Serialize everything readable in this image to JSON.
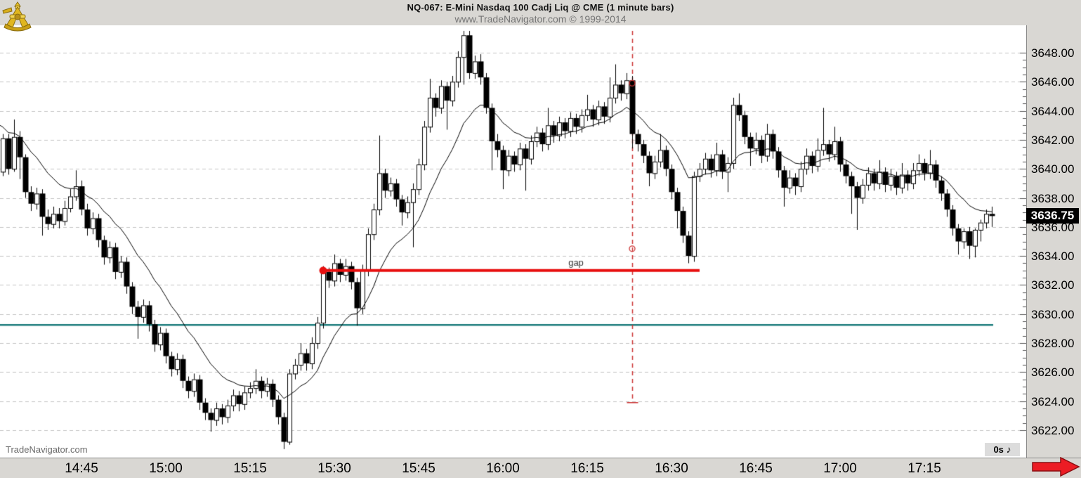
{
  "header": {
    "title": "NQ-067:  E-Mini Nasdaq 100 Cadj Liq @ CME  (1 minute bars)",
    "subtitle": "www.TradeNavigator.com © 1999-2014",
    "logo": "trade-navigator-sextant-logo"
  },
  "watermark": "TradeNavigator.com",
  "status_box": {
    "label": "0s",
    "icon": "eighth-note-icon",
    "note_glyph": "♪"
  },
  "price_axis": {
    "max": 3648,
    "min": 3622,
    "step": 2,
    "decimals": 2,
    "labels": [
      "3648.00",
      "3646.00",
      "3644.00",
      "3642.00",
      "3640.00",
      "3638.00",
      "3636.00",
      "3634.00",
      "3632.00",
      "3630.00",
      "3628.00",
      "3626.00",
      "3624.00",
      "3622.00"
    ],
    "last_price_badge": "3636.75"
  },
  "time_axis": {
    "labels": [
      "14:45",
      "15:00",
      "15:15",
      "15:30",
      "15:45",
      "16:00",
      "16:15",
      "16:30",
      "16:45",
      "17:00",
      "17:15"
    ]
  },
  "colors": {
    "panel_bg": "#d9d7d3",
    "grid": "#c3c3c3",
    "candle_up": "#ffffff",
    "candle_down": "#000000",
    "candle_outline": "#000000",
    "ma_line": "#000000",
    "support_teal": "#1c7c7c",
    "gap_red": "#e81010",
    "vline_red": "#cc3333",
    "arrow_red": "#ec1c24",
    "badge_bg": "#000000",
    "badge_fg": "#ffffff"
  },
  "chart_data": {
    "type": "candlestick",
    "title": "NQ-067: E-Mini Nasdaq 100 Cadj Liq @ CME (1 minute bars)",
    "interval_minutes": 1,
    "start_time": "14:31",
    "end_time": "17:27",
    "ylim": [
      3620.1,
      3649.7
    ],
    "grid": "dashed-horizontal",
    "last_price": 3636.75,
    "bars_ohlc": [
      [
        3639.8,
        3642.4,
        3639.5,
        3642.1
      ],
      [
        3642.1,
        3642.4,
        3639.6,
        3640.0
      ],
      [
        3640.0,
        3643.4,
        3639.8,
        3642.2
      ],
      [
        3642.2,
        3642.6,
        3639.3,
        3640.8
      ],
      [
        3640.8,
        3641.0,
        3638.0,
        3638.4
      ],
      [
        3638.4,
        3638.8,
        3637.1,
        3637.6
      ],
      [
        3637.6,
        3638.7,
        3637.2,
        3638.3
      ],
      [
        3638.3,
        3638.6,
        3635.4,
        3636.7
      ],
      [
        3636.7,
        3637.2,
        3635.8,
        3636.2
      ],
      [
        3636.2,
        3637.4,
        3635.9,
        3636.9
      ],
      [
        3636.9,
        3637.3,
        3635.9,
        3636.4
      ],
      [
        3636.4,
        3637.8,
        3636.1,
        3637.3
      ],
      [
        3637.3,
        3638.6,
        3637.0,
        3638.1
      ],
      [
        3638.1,
        3639.9,
        3637.8,
        3638.8
      ],
      [
        3638.8,
        3639.2,
        3636.8,
        3637.2
      ],
      [
        3637.2,
        3637.6,
        3635.4,
        3635.9
      ],
      [
        3635.9,
        3637.0,
        3635.5,
        3636.6
      ],
      [
        3636.6,
        3636.9,
        3634.6,
        3635.1
      ],
      [
        3635.1,
        3635.4,
        3633.4,
        3633.9
      ],
      [
        3633.9,
        3635.0,
        3633.5,
        3634.6
      ],
      [
        3634.6,
        3634.9,
        3632.4,
        3632.9
      ],
      [
        3632.9,
        3634.0,
        3632.5,
        3633.6
      ],
      [
        3633.6,
        3633.9,
        3631.4,
        3631.9
      ],
      [
        3631.9,
        3632.2,
        3630.0,
        3630.5
      ],
      [
        3630.5,
        3630.9,
        3628.3,
        3629.8
      ],
      [
        3629.8,
        3631.0,
        3629.4,
        3630.6
      ],
      [
        3630.6,
        3630.9,
        3628.8,
        3629.3
      ],
      [
        3629.3,
        3629.6,
        3627.4,
        3627.9
      ],
      [
        3627.9,
        3629.1,
        3627.5,
        3628.7
      ],
      [
        3628.7,
        3629.0,
        3626.6,
        3627.1
      ],
      [
        3627.1,
        3627.4,
        3625.7,
        3626.2
      ],
      [
        3626.2,
        3627.3,
        3625.8,
        3626.9
      ],
      [
        3626.9,
        3627.2,
        3624.9,
        3625.4
      ],
      [
        3625.4,
        3625.7,
        3624.2,
        3624.7
      ],
      [
        3624.7,
        3625.9,
        3624.3,
        3625.5
      ],
      [
        3625.5,
        3625.8,
        3623.4,
        3623.9
      ],
      [
        3623.9,
        3624.2,
        3622.7,
        3623.2
      ],
      [
        3623.2,
        3623.5,
        3621.9,
        3622.7
      ],
      [
        3622.7,
        3623.9,
        3622.3,
        3623.5
      ],
      [
        3623.5,
        3623.8,
        3622.4,
        3622.9
      ],
      [
        3622.9,
        3624.1,
        3622.5,
        3623.7
      ],
      [
        3623.7,
        3624.8,
        3623.3,
        3624.4
      ],
      [
        3624.4,
        3624.7,
        3623.3,
        3623.8
      ],
      [
        3623.8,
        3625.0,
        3623.4,
        3624.6
      ],
      [
        3624.6,
        3625.3,
        3624.2,
        3624.9
      ],
      [
        3624.9,
        3626.2,
        3624.5,
        3625.4
      ],
      [
        3625.4,
        3625.7,
        3624.2,
        3624.7
      ],
      [
        3624.7,
        3625.6,
        3624.3,
        3625.2
      ],
      [
        3625.2,
        3625.5,
        3623.6,
        3624.1
      ],
      [
        3624.1,
        3624.4,
        3622.4,
        3622.9
      ],
      [
        3622.9,
        3623.2,
        3620.7,
        3621.2
      ],
      [
        3621.2,
        3626.2,
        3621.0,
        3625.9
      ],
      [
        3625.9,
        3626.9,
        3625.5,
        3626.5
      ],
      [
        3626.5,
        3628.0,
        3626.1,
        3627.3
      ],
      [
        3627.3,
        3627.6,
        3626.1,
        3626.6
      ],
      [
        3626.6,
        3628.4,
        3626.2,
        3628.0
      ],
      [
        3628.0,
        3629.8,
        3627.6,
        3629.4
      ],
      [
        3629.4,
        3633.3,
        3629.0,
        3632.9
      ],
      [
        3632.9,
        3633.2,
        3631.8,
        3632.3
      ],
      [
        3632.3,
        3634.1,
        3631.9,
        3633.5
      ],
      [
        3633.5,
        3633.8,
        3632.2,
        3632.7
      ],
      [
        3632.7,
        3633.8,
        3632.3,
        3633.3
      ],
      [
        3633.3,
        3633.6,
        3631.7,
        3632.2
      ],
      [
        3632.2,
        3632.5,
        3629.2,
        3630.4
      ],
      [
        3630.4,
        3633.4,
        3630.0,
        3633.0
      ],
      [
        3633.0,
        3635.9,
        3632.6,
        3635.5
      ],
      [
        3635.5,
        3637.6,
        3635.1,
        3637.2
      ],
      [
        3637.2,
        3642.3,
        3636.8,
        3639.7
      ],
      [
        3639.7,
        3640.0,
        3638.0,
        3638.5
      ],
      [
        3638.5,
        3639.4,
        3638.1,
        3639.0
      ],
      [
        3639.0,
        3639.3,
        3637.4,
        3637.9
      ],
      [
        3637.9,
        3638.2,
        3636.1,
        3637.0
      ],
      [
        3637.0,
        3638.1,
        3636.6,
        3637.7
      ],
      [
        3637.7,
        3639.0,
        3634.6,
        3638.6
      ],
      [
        3638.6,
        3640.7,
        3638.2,
        3640.3
      ],
      [
        3640.3,
        3643.3,
        3639.9,
        3642.9
      ],
      [
        3642.9,
        3646.2,
        3642.5,
        3644.9
      ],
      [
        3644.9,
        3645.2,
        3643.6,
        3644.2
      ],
      [
        3644.2,
        3646.1,
        3643.8,
        3645.7
      ],
      [
        3645.7,
        3646.0,
        3642.7,
        3644.7
      ],
      [
        3644.7,
        3646.4,
        3644.3,
        3646.0
      ],
      [
        3646.0,
        3648.1,
        3645.6,
        3647.7
      ],
      [
        3647.7,
        3649.5,
        3645.8,
        3649.2
      ],
      [
        3649.2,
        3649.5,
        3646.2,
        3646.6
      ],
      [
        3646.6,
        3647.8,
        3646.2,
        3647.4
      ],
      [
        3647.4,
        3647.9,
        3645.8,
        3646.3
      ],
      [
        3646.3,
        3646.6,
        3643.8,
        3644.2
      ],
      [
        3644.2,
        3644.5,
        3639.9,
        3641.9
      ],
      [
        3641.9,
        3642.4,
        3640.8,
        3641.3
      ],
      [
        3641.3,
        3641.6,
        3638.6,
        3639.9
      ],
      [
        3639.9,
        3641.3,
        3639.5,
        3640.9
      ],
      [
        3640.9,
        3641.2,
        3639.8,
        3640.3
      ],
      [
        3640.3,
        3641.8,
        3639.9,
        3641.4
      ],
      [
        3641.4,
        3641.7,
        3638.5,
        3640.7
      ],
      [
        3640.7,
        3642.3,
        3640.3,
        3641.9
      ],
      [
        3641.9,
        3642.9,
        3641.5,
        3642.5
      ],
      [
        3642.5,
        3642.8,
        3641.2,
        3641.7
      ],
      [
        3641.7,
        3644.2,
        3641.3,
        3643.0
      ],
      [
        3643.0,
        3643.3,
        3641.8,
        3642.3
      ],
      [
        3642.3,
        3643.6,
        3641.9,
        3643.2
      ],
      [
        3643.2,
        3643.5,
        3642.1,
        3642.6
      ],
      [
        3642.6,
        3643.9,
        3642.2,
        3643.5
      ],
      [
        3643.5,
        3643.8,
        3642.4,
        3642.9
      ],
      [
        3642.9,
        3644.1,
        3642.5,
        3643.7
      ],
      [
        3643.7,
        3645.1,
        3643.3,
        3644.1
      ],
      [
        3644.1,
        3644.4,
        3642.9,
        3643.4
      ],
      [
        3643.4,
        3644.7,
        3643.0,
        3644.3
      ],
      [
        3644.3,
        3644.6,
        3643.1,
        3643.6
      ],
      [
        3643.6,
        3646.3,
        3643.2,
        3644.9
      ],
      [
        3644.9,
        3647.2,
        3644.5,
        3645.8
      ],
      [
        3645.8,
        3646.1,
        3644.7,
        3645.2
      ],
      [
        3645.2,
        3646.6,
        3644.8,
        3646.1
      ],
      [
        3646.1,
        3646.4,
        3641.4,
        3642.4
      ],
      [
        3642.4,
        3642.7,
        3641.2,
        3641.7
      ],
      [
        3641.7,
        3642.0,
        3640.4,
        3640.9
      ],
      [
        3640.9,
        3641.2,
        3638.8,
        3639.7
      ],
      [
        3639.7,
        3640.9,
        3639.3,
        3640.5
      ],
      [
        3640.5,
        3642.4,
        3640.1,
        3641.3
      ],
      [
        3641.3,
        3641.6,
        3639.5,
        3640.0
      ],
      [
        3640.0,
        3640.3,
        3637.9,
        3638.4
      ],
      [
        3638.4,
        3638.7,
        3635.9,
        3637.1
      ],
      [
        3637.1,
        3637.4,
        3634.9,
        3635.4
      ],
      [
        3635.4,
        3635.7,
        3633.5,
        3634.0
      ],
      [
        3634.0,
        3639.8,
        3633.6,
        3639.5
      ],
      [
        3639.5,
        3640.4,
        3639.1,
        3640.0
      ],
      [
        3640.0,
        3641.1,
        3639.6,
        3640.7
      ],
      [
        3640.7,
        3641.0,
        3639.4,
        3639.9
      ],
      [
        3639.9,
        3641.8,
        3639.5,
        3641.0
      ],
      [
        3641.0,
        3641.3,
        3639.3,
        3639.8
      ],
      [
        3639.8,
        3640.8,
        3638.4,
        3640.4
      ],
      [
        3640.4,
        3644.9,
        3640.0,
        3644.4
      ],
      [
        3644.4,
        3645.2,
        3643.3,
        3643.7
      ],
      [
        3643.7,
        3644.0,
        3641.7,
        3642.2
      ],
      [
        3642.2,
        3642.5,
        3640.2,
        3641.4
      ],
      [
        3641.4,
        3642.5,
        3641.0,
        3642.0
      ],
      [
        3642.0,
        3642.3,
        3640.4,
        3640.9
      ],
      [
        3640.9,
        3643.1,
        3640.5,
        3642.4
      ],
      [
        3642.4,
        3642.7,
        3640.7,
        3641.2
      ],
      [
        3641.2,
        3641.5,
        3639.4,
        3639.9
      ],
      [
        3639.9,
        3640.2,
        3637.4,
        3638.7
      ],
      [
        3638.7,
        3639.9,
        3638.3,
        3639.4
      ],
      [
        3639.4,
        3639.7,
        3638.2,
        3638.8
      ],
      [
        3638.8,
        3640.5,
        3638.4,
        3640.0
      ],
      [
        3640.0,
        3641.4,
        3639.6,
        3640.9
      ],
      [
        3640.9,
        3641.2,
        3639.7,
        3640.2
      ],
      [
        3640.2,
        3642.1,
        3639.8,
        3641.3
      ],
      [
        3641.3,
        3644.2,
        3640.9,
        3641.7
      ],
      [
        3641.7,
        3642.0,
        3640.5,
        3641.0
      ],
      [
        3641.0,
        3642.9,
        3640.6,
        3641.9
      ],
      [
        3641.9,
        3642.2,
        3639.8,
        3640.3
      ],
      [
        3640.3,
        3640.6,
        3639.0,
        3639.5
      ],
      [
        3639.5,
        3639.8,
        3636.9,
        3638.8
      ],
      [
        3638.8,
        3639.1,
        3635.8,
        3638.0
      ],
      [
        3638.0,
        3639.3,
        3637.6,
        3638.9
      ],
      [
        3638.9,
        3640.1,
        3638.5,
        3639.7
      ],
      [
        3639.7,
        3640.0,
        3638.5,
        3639.0
      ],
      [
        3639.0,
        3640.6,
        3638.6,
        3639.8
      ],
      [
        3639.8,
        3640.1,
        3638.4,
        3638.9
      ],
      [
        3638.9,
        3640.0,
        3638.5,
        3639.5
      ],
      [
        3639.5,
        3639.8,
        3638.2,
        3638.7
      ],
      [
        3638.7,
        3640.4,
        3638.3,
        3639.6
      ],
      [
        3639.6,
        3639.9,
        3638.5,
        3639.0
      ],
      [
        3639.0,
        3640.4,
        3638.6,
        3639.9
      ],
      [
        3639.9,
        3641.0,
        3639.5,
        3640.4
      ],
      [
        3640.4,
        3640.7,
        3639.2,
        3639.7
      ],
      [
        3639.7,
        3641.3,
        3639.3,
        3640.3
      ],
      [
        3640.3,
        3640.6,
        3638.7,
        3639.2
      ],
      [
        3639.2,
        3639.5,
        3637.8,
        3638.3
      ],
      [
        3638.3,
        3638.6,
        3636.7,
        3637.2
      ],
      [
        3637.2,
        3637.5,
        3635.4,
        3635.9
      ],
      [
        3635.9,
        3636.2,
        3634.1,
        3635.0
      ],
      [
        3635.0,
        3635.9,
        3634.5,
        3635.7
      ],
      [
        3635.7,
        3636.0,
        3633.8,
        3634.7
      ],
      [
        3634.7,
        3635.9,
        3633.9,
        3635.8
      ],
      [
        3635.8,
        3636.5,
        3635.0,
        3636.3
      ],
      [
        3636.3,
        3637.2,
        3635.9,
        3636.9
      ],
      [
        3636.9,
        3637.4,
        3636.0,
        3636.75
      ]
    ],
    "overlays": {
      "moving_average": {
        "method": "ema",
        "period": 14,
        "seed": 3643.0,
        "color": "#000000"
      },
      "gap_line": {
        "label": "gap",
        "price": 3633.0,
        "from_time": "15:28",
        "to_time": "16:35",
        "label_time": "16:13",
        "color": "#e81010",
        "start_marker": "filled-dot"
      },
      "support_line": {
        "price": 3629.25,
        "color": "#1c7c7c"
      },
      "vline": {
        "time": "16:23",
        "style": "dashed",
        "color": "#cc3333",
        "top_price": 3649.5,
        "bottom_price": 3623.9,
        "marker_prices": [
          3645.9,
          3634.5
        ]
      }
    }
  }
}
